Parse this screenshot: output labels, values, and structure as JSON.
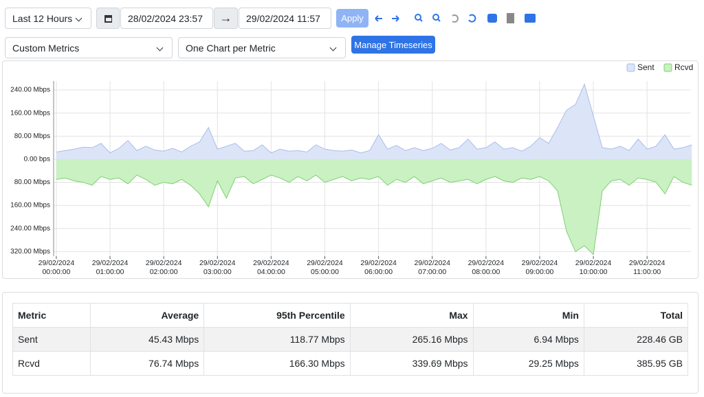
{
  "toolbar": {
    "range": "Last 12 Hours",
    "start": "28/02/2024 23:57",
    "end": "29/02/2024 11:57",
    "apply": "Apply",
    "metrics": "Custom Metrics",
    "layout": "One Chart per Metric",
    "manage": "Manage Timeseries"
  },
  "chart_data": {
    "type": "area",
    "legend": "top-right",
    "grid": true,
    "x": [
      "29/02/2024 00:00:00",
      "29/02/2024 00:10:00",
      "29/02/2024 00:20:00",
      "29/02/2024 00:30:00",
      "29/02/2024 00:40:00",
      "29/02/2024 00:50:00",
      "29/02/2024 01:00:00",
      "29/02/2024 01:10:00",
      "29/02/2024 01:20:00",
      "29/02/2024 01:30:00",
      "29/02/2024 01:40:00",
      "29/02/2024 01:50:00",
      "29/02/2024 02:00:00",
      "29/02/2024 02:10:00",
      "29/02/2024 02:20:00",
      "29/02/2024 02:30:00",
      "29/02/2024 02:40:00",
      "29/02/2024 02:50:00",
      "29/02/2024 03:00:00",
      "29/02/2024 03:10:00",
      "29/02/2024 03:20:00",
      "29/02/2024 03:30:00",
      "29/02/2024 03:40:00",
      "29/02/2024 03:50:00",
      "29/02/2024 04:00:00",
      "29/02/2024 04:10:00",
      "29/02/2024 04:20:00",
      "29/02/2024 04:30:00",
      "29/02/2024 04:40:00",
      "29/02/2024 04:50:00",
      "29/02/2024 05:00:00",
      "29/02/2024 05:10:00",
      "29/02/2024 05:20:00",
      "29/02/2024 05:30:00",
      "29/02/2024 05:40:00",
      "29/02/2024 05:50:00",
      "29/02/2024 06:00:00",
      "29/02/2024 06:10:00",
      "29/02/2024 06:20:00",
      "29/02/2024 06:30:00",
      "29/02/2024 06:40:00",
      "29/02/2024 06:50:00",
      "29/02/2024 07:00:00",
      "29/02/2024 07:10:00",
      "29/02/2024 07:20:00",
      "29/02/2024 07:30:00",
      "29/02/2024 07:40:00",
      "29/02/2024 07:50:00",
      "29/02/2024 08:00:00",
      "29/02/2024 08:10:00",
      "29/02/2024 08:20:00",
      "29/02/2024 08:30:00",
      "29/02/2024 08:40:00",
      "29/02/2024 08:50:00",
      "29/02/2024 09:00:00",
      "29/02/2024 09:10:00",
      "29/02/2024 09:20:00",
      "29/02/2024 09:30:00",
      "29/02/2024 09:40:00",
      "29/02/2024 09:50:00",
      "29/02/2024 10:00:00",
      "29/02/2024 10:10:00",
      "29/02/2024 10:20:00",
      "29/02/2024 10:30:00",
      "29/02/2024 10:40:00",
      "29/02/2024 10:50:00",
      "29/02/2024 11:00:00",
      "29/02/2024 11:10:00",
      "29/02/2024 11:20:00",
      "29/02/2024 11:30:00",
      "29/02/2024 11:40:00",
      "29/02/2024 11:50:00"
    ],
    "series": [
      {
        "name": "Sent",
        "color": "#a9bde8",
        "fill": "#dce5f8",
        "values": [
          25,
          30,
          35,
          42,
          40,
          55,
          22,
          38,
          65,
          30,
          45,
          32,
          28,
          38,
          25,
          45,
          60,
          110,
          35,
          45,
          55,
          28,
          30,
          50,
          22,
          35,
          28,
          30,
          25,
          50,
          35,
          30,
          28,
          32,
          22,
          30,
          85,
          35,
          48,
          30,
          40,
          30,
          38,
          55,
          32,
          40,
          70,
          35,
          40,
          60,
          35,
          40,
          28,
          45,
          75,
          55,
          110,
          170,
          190,
          260,
          150,
          40,
          35,
          45,
          30,
          70,
          35,
          45,
          85,
          35,
          40,
          50
        ]
      },
      {
        "name": "Rcvd",
        "color": "#7fcf72",
        "fill": "#c9f1c2",
        "values": [
          -70,
          -65,
          -75,
          -80,
          -90,
          -60,
          -70,
          -65,
          -85,
          -55,
          -70,
          -90,
          -80,
          -85,
          -70,
          -90,
          -120,
          -165,
          -75,
          -135,
          -65,
          -60,
          -85,
          -70,
          -55,
          -65,
          -80,
          -60,
          -75,
          -55,
          -80,
          -70,
          -60,
          -75,
          -65,
          -70,
          -60,
          -90,
          -70,
          -80,
          -60,
          -85,
          -75,
          -65,
          -80,
          -75,
          -70,
          -85,
          -70,
          -60,
          -75,
          -80,
          -65,
          -70,
          -60,
          -75,
          -110,
          -250,
          -320,
          -300,
          -330,
          -110,
          -75,
          -70,
          -90,
          -65,
          -70,
          -80,
          -120,
          -60,
          -80,
          -90
        ]
      }
    ],
    "xlim": [
      "28/02/2024 23:57:00",
      "29/02/2024 11:49:00"
    ],
    "xticks": [
      "29/02/2024 00:00:00",
      "29/02/2024 01:00:00",
      "29/02/2024 02:00:00",
      "29/02/2024 03:00:00",
      "29/02/2024 04:00:00",
      "29/02/2024 05:00:00",
      "29/02/2024 06:00:00",
      "29/02/2024 07:00:00",
      "29/02/2024 08:00:00",
      "29/02/2024 09:00:00",
      "29/02/2024 10:00:00",
      "29/02/2024 11:00:00"
    ],
    "ylim": [
      -336,
      271
    ],
    "yticks": [
      {
        "value": 240,
        "label": "240.00 Mbps"
      },
      {
        "value": 160,
        "label": "160.00 Mbps"
      },
      {
        "value": 80,
        "label": "80.00 Mbps"
      },
      {
        "value": 0,
        "label": "0.00 bps"
      },
      {
        "value": -80,
        "label": "80.00 Mbps"
      },
      {
        "value": -160,
        "label": "160.00 Mbps"
      },
      {
        "value": -240,
        "label": "240.00 Mbps"
      },
      {
        "value": -320,
        "label": "320.00 Mbps"
      }
    ]
  },
  "table": {
    "header": [
      "Metric",
      "Average",
      "95th Percentile",
      "Max",
      "Min",
      "Total"
    ],
    "rows": [
      [
        "Sent",
        "45.43 Mbps",
        "118.77 Mbps",
        "265.16 Mbps",
        "6.94 Mbps",
        "228.46 GB"
      ],
      [
        "Rcvd",
        "76.74 Mbps",
        "166.30 Mbps",
        "339.69 Mbps",
        "29.25 Mbps",
        "385.95 GB"
      ]
    ]
  }
}
